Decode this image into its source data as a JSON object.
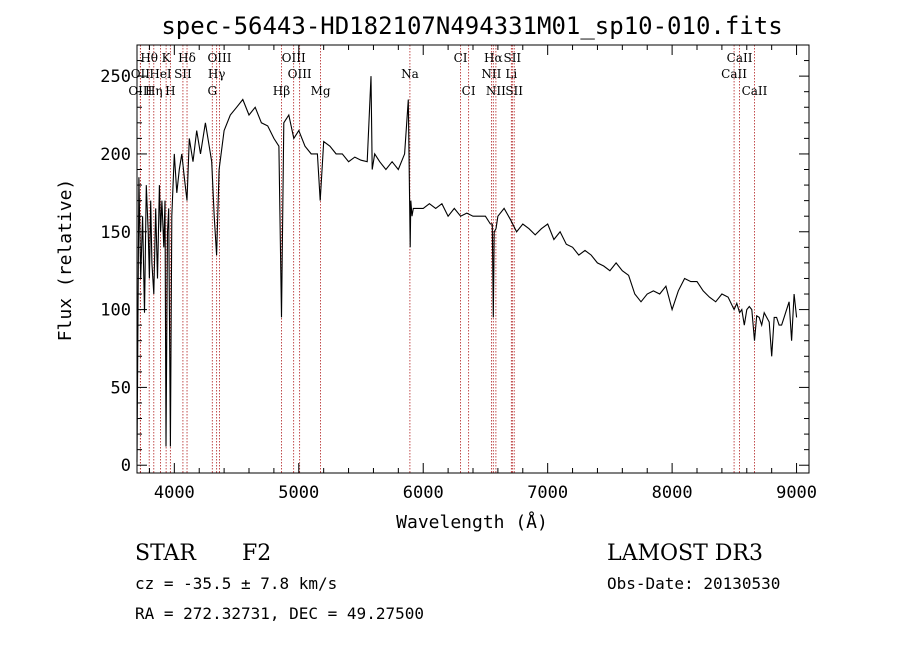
{
  "chart_data": {
    "type": "line",
    "title": "spec-56443-HD182107N494331M01_sp10-010.fits",
    "xlabel": "Wavelength (Å)",
    "ylabel": "Flux (relative)",
    "xlim": [
      3700,
      9100
    ],
    "ylim": [
      -5,
      270
    ],
    "xticks": [
      4000,
      5000,
      6000,
      7000,
      8000,
      9000
    ],
    "yticks": [
      0,
      50,
      100,
      150,
      200,
      250
    ],
    "series": [
      {
        "name": "spectrum",
        "x": [
          3700,
          3715,
          3730,
          3745,
          3760,
          3775,
          3790,
          3800,
          3810,
          3820,
          3835,
          3850,
          3865,
          3880,
          3890,
          3900,
          3915,
          3925,
          3933,
          3945,
          3955,
          3968,
          3980,
          4000,
          4020,
          4040,
          4060,
          4080,
          4102,
          4120,
          4150,
          4180,
          4210,
          4250,
          4280,
          4300,
          4320,
          4340,
          4360,
          4400,
          4450,
          4500,
          4550,
          4600,
          4650,
          4700,
          4750,
          4800,
          4840,
          4861,
          4880,
          4920,
          4960,
          5000,
          5050,
          5100,
          5150,
          5172,
          5200,
          5250,
          5300,
          5350,
          5400,
          5450,
          5500,
          5550,
          5580,
          5590,
          5610,
          5650,
          5700,
          5750,
          5800,
          5850,
          5880,
          5895,
          5900,
          5910,
          5920,
          5950,
          6000,
          6050,
          6100,
          6150,
          6200,
          6250,
          6300,
          6350,
          6400,
          6450,
          6500,
          6540,
          6555,
          6563,
          6570,
          6585,
          6600,
          6650,
          6700,
          6750,
          6800,
          6850,
          6900,
          6950,
          7000,
          7050,
          7100,
          7150,
          7200,
          7250,
          7300,
          7350,
          7400,
          7450,
          7500,
          7550,
          7600,
          7650,
          7700,
          7750,
          7800,
          7850,
          7900,
          7950,
          8000,
          8050,
          8100,
          8150,
          8200,
          8250,
          8300,
          8350,
          8400,
          8450,
          8498,
          8520,
          8542,
          8560,
          8580,
          8600,
          8620,
          8640,
          8662,
          8680,
          8700,
          8720,
          8740,
          8760,
          8780,
          8800,
          8820,
          8840,
          8860,
          8880,
          8900,
          8920,
          8940,
          8960,
          8980,
          9000
        ],
        "y": [
          2,
          185,
          120,
          160,
          98,
          180,
          150,
          120,
          170,
          130,
          110,
          165,
          120,
          180,
          150,
          170,
          140,
          170,
          12,
          150,
          165,
          12,
          160,
          200,
          175,
          190,
          200,
          185,
          170,
          210,
          195,
          215,
          200,
          220,
          205,
          195,
          160,
          135,
          190,
          215,
          225,
          230,
          235,
          225,
          230,
          220,
          218,
          210,
          205,
          95,
          220,
          225,
          210,
          215,
          205,
          200,
          200,
          170,
          208,
          205,
          200,
          200,
          195,
          198,
          196,
          195,
          250,
          190,
          200,
          195,
          190,
          195,
          190,
          200,
          235,
          140,
          170,
          160,
          165,
          165,
          165,
          168,
          165,
          168,
          160,
          165,
          160,
          162,
          160,
          160,
          160,
          155,
          155,
          95,
          150,
          152,
          160,
          165,
          158,
          150,
          155,
          152,
          148,
          152,
          155,
          145,
          150,
          142,
          140,
          135,
          138,
          135,
          130,
          128,
          125,
          130,
          125,
          122,
          110,
          105,
          110,
          112,
          110,
          115,
          100,
          112,
          120,
          118,
          118,
          112,
          108,
          105,
          110,
          108,
          100,
          104,
          98,
          100,
          90,
          100,
          102,
          100,
          80,
          96,
          95,
          90,
          98,
          95,
          92,
          70,
          95,
          95,
          90,
          90,
          95,
          100,
          105,
          80,
          110,
          95
        ]
      }
    ],
    "spectral_lines": [
      {
        "name": "Hθ",
        "x": 3798,
        "row": 0
      },
      {
        "name": "K",
        "x": 3934,
        "row": 0
      },
      {
        "name": "Hδ",
        "x": 4102,
        "row": 0
      },
      {
        "name": "OIII",
        "x": 4363,
        "row": 0
      },
      {
        "name": "OIII",
        "x": 4959,
        "row": 0
      },
      {
        "name": "CI",
        "x": 6300,
        "row": 0
      },
      {
        "name": "Hα",
        "x": 6563,
        "row": 0
      },
      {
        "name": "SII",
        "x": 6716,
        "row": 0
      },
      {
        "name": "CaII",
        "x": 8542,
        "row": 0
      },
      {
        "name": "OII",
        "x": 3727,
        "row": 1
      },
      {
        "name": "HeI",
        "x": 3889,
        "row": 1
      },
      {
        "name": "SII",
        "x": 4069,
        "row": 1
      },
      {
        "name": "Hγ",
        "x": 4340,
        "row": 1
      },
      {
        "name": "OIII",
        "x": 5007,
        "row": 1
      },
      {
        "name": "Na",
        "x": 5893,
        "row": 1
      },
      {
        "name": "NII",
        "x": 6548,
        "row": 1
      },
      {
        "name": "Li",
        "x": 6708,
        "row": 1
      },
      {
        "name": "CaII",
        "x": 8498,
        "row": 1
      },
      {
        "name": "OIII",
        "x": 3727,
        "row": 2
      },
      {
        "name": "Hη",
        "x": 3835,
        "row": 2
      },
      {
        "name": "H",
        "x": 3968,
        "row": 2
      },
      {
        "name": "G",
        "x": 4305,
        "row": 2
      },
      {
        "name": "Hβ",
        "x": 4861,
        "row": 2
      },
      {
        "name": "Mg",
        "x": 5175,
        "row": 2
      },
      {
        "name": "CI",
        "x": 6365,
        "row": 2
      },
      {
        "name": "NII",
        "x": 6584,
        "row": 2
      },
      {
        "name": "SII",
        "x": 6731,
        "row": 2
      },
      {
        "name": "CaII",
        "x": 8662,
        "row": 2
      }
    ]
  },
  "info": {
    "object_class": "STAR",
    "subclass": "F2",
    "survey": "LAMOST DR3",
    "redshift": "cz = -35.5 ± 7.8 km/s",
    "obs_date": "Obs-Date: 20130530",
    "coords": "RA = 272.32731, DEC =  49.27500"
  },
  "colors": {
    "line_marker": "#b22222",
    "spectrum": "#000000"
  }
}
